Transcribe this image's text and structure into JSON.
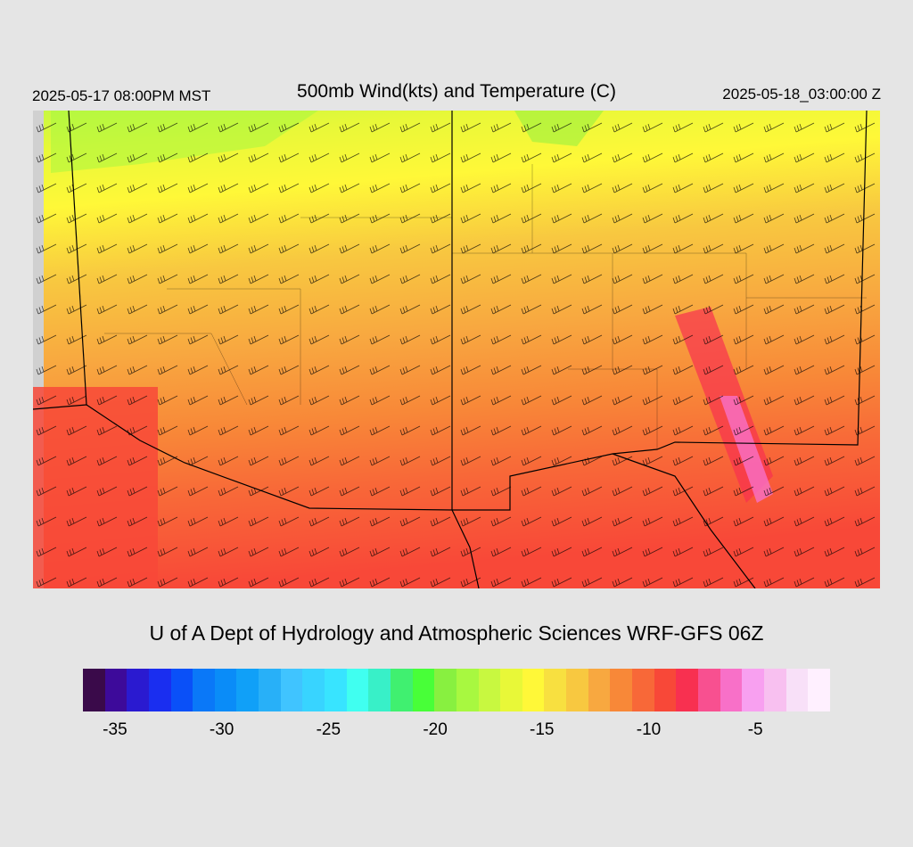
{
  "header": {
    "local_time": "2025-05-17 08:00PM MST",
    "title": "500mb Wind(kts) and Temperature (C)",
    "utc_time": "2025-05-18_03:00:00 Z"
  },
  "credit": "U of A Dept of Hydrology and Atmospheric Sciences WRF-GFS 06Z",
  "colorbar": {
    "colors": [
      "#3a0a4a",
      "#3d0a9a",
      "#2a1ad0",
      "#1a2ef0",
      "#0a50f8",
      "#0a78f8",
      "#0a8cf8",
      "#10a0f8",
      "#28b0f8",
      "#40c4ff",
      "#38d4ff",
      "#38e4ff",
      "#40fff0",
      "#38f0c8",
      "#40f070",
      "#48ff38",
      "#88f040",
      "#a8f840",
      "#c8f840",
      "#e8f838",
      "#fff838",
      "#f8e040",
      "#f8c840",
      "#f8a840",
      "#f88838",
      "#f86838",
      "#f84838",
      "#f83050",
      "#f85090",
      "#f870c8",
      "#f8a0f0",
      "#f8c0f0",
      "#f8e0f8",
      "#fff0ff"
    ],
    "tick_labels": [
      "-35",
      "-30",
      "-25",
      "-20",
      "-15",
      "-10",
      "-5"
    ],
    "tick_values": [
      -35,
      -30,
      -25,
      -20,
      -15,
      -10,
      -5
    ],
    "range": [
      -36.5,
      -1.5
    ]
  }
}
